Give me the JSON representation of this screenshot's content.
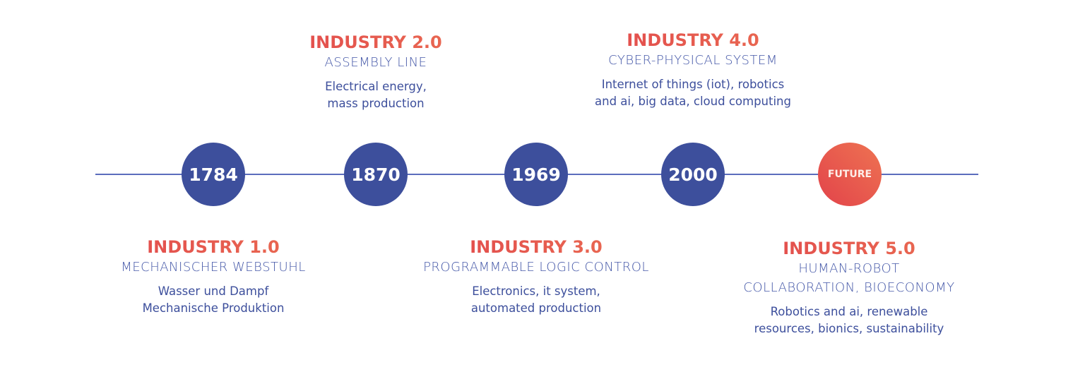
{
  "colors": {
    "primary": "#3d4f9c",
    "accent_start": "#e0434b",
    "accent_end": "#ec7353",
    "line": "#5b6dbd"
  },
  "nodes": [
    {
      "label": "1784"
    },
    {
      "label": "1870"
    },
    {
      "label": "1969"
    },
    {
      "label": "2000"
    },
    {
      "label": "FUTURE"
    }
  ],
  "stages": [
    {
      "title": "INDUSTRY 1.0",
      "subtitle": [
        "MECHANISCHER WEBSTUHL"
      ],
      "description": [
        "Wasser und Dampf",
        "Mechanische Produktion"
      ]
    },
    {
      "title": "INDUSTRY 2.0",
      "subtitle": [
        "ASSEMBLY LINE"
      ],
      "description": [
        "Electrical energy,",
        "mass production"
      ]
    },
    {
      "title": "INDUSTRY 3.0",
      "subtitle": [
        "PROGRAMMABLE LOGIC CONTROL"
      ],
      "description": [
        "Electronics, it system,",
        "automated production"
      ]
    },
    {
      "title": "INDUSTRY 4.0",
      "subtitle": [
        "CYBER-PHYSICAL SYSTEM"
      ],
      "description": [
        "Internet of things (iot), robotics",
        "and ai, big data, cloud computing"
      ]
    },
    {
      "title": "INDUSTRY 5.0",
      "subtitle": [
        "HUMAN-ROBOT",
        "COLLABORATION, BIOECONOMY"
      ],
      "description": [
        "Robotics and ai, renewable",
        "resources, bionics, sustainability"
      ]
    }
  ]
}
